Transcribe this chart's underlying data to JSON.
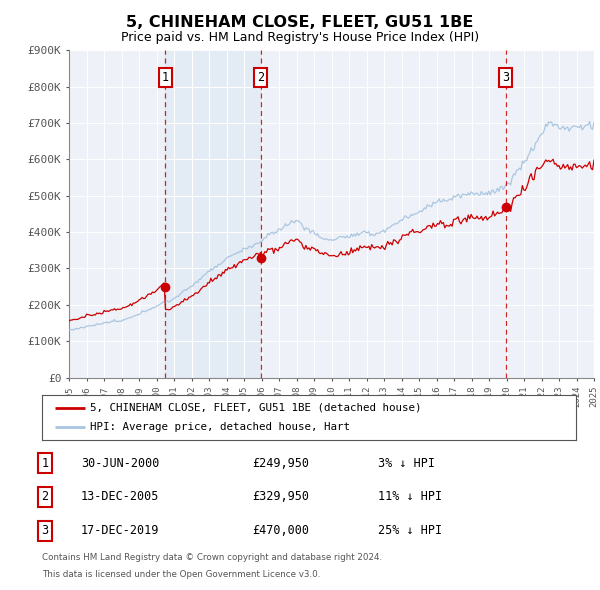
{
  "title": "5, CHINEHAM CLOSE, FLEET, GU51 1BE",
  "subtitle": "Price paid vs. HM Land Registry's House Price Index (HPI)",
  "ylim": [
    0,
    900000
  ],
  "yticks": [
    0,
    100000,
    200000,
    300000,
    400000,
    500000,
    600000,
    700000,
    800000,
    900000
  ],
  "ytick_labels": [
    "£0",
    "£100K",
    "£200K",
    "£300K",
    "£400K",
    "£500K",
    "£600K",
    "£700K",
    "£800K",
    "£900K"
  ],
  "hpi_color": "#a8c4e0",
  "price_color": "#cc0000",
  "bg_color": "#eef2f8",
  "shade_color": "#d0dff0",
  "sale_dates": [
    2000.5,
    2005.96,
    2019.96
  ],
  "sale_prices": [
    249950,
    329950,
    470000
  ],
  "sale_labels": [
    "1",
    "2",
    "3"
  ],
  "legend_price_label": "5, CHINEHAM CLOSE, FLEET, GU51 1BE (detached house)",
  "legend_hpi_label": "HPI: Average price, detached house, Hart",
  "table_rows": [
    {
      "num": "1",
      "date": "30-JUN-2000",
      "price": "£249,950",
      "pct": "3% ↓ HPI"
    },
    {
      "num": "2",
      "date": "13-DEC-2005",
      "price": "£329,950",
      "pct": "11% ↓ HPI"
    },
    {
      "num": "3",
      "date": "17-DEC-2019",
      "price": "£470,000",
      "pct": "25% ↓ HPI"
    }
  ],
  "footer": [
    "Contains HM Land Registry data © Crown copyright and database right 2024.",
    "This data is licensed under the Open Government Licence v3.0."
  ],
  "xmin": 1995,
  "xmax": 2025
}
